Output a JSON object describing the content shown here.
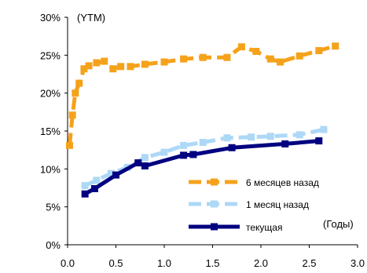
{
  "chart_data": {
    "type": "line",
    "title": "",
    "ylabel": "(YTM)",
    "xlabel": "(Годы)",
    "xlim": [
      0,
      3
    ],
    "ylim": [
      0,
      0.3
    ],
    "x_ticks": [
      0,
      0.5,
      1,
      1.5,
      2,
      2.5,
      3
    ],
    "x_tick_labels": [
      "0.0",
      "0.5",
      "1.0",
      "1.5",
      "2.0",
      "2.5",
      "3.0"
    ],
    "y_ticks": [
      0,
      0.05,
      0.1,
      0.15,
      0.2,
      0.25,
      0.3
    ],
    "y_tick_labels": [
      "0%",
      "5%",
      "10%",
      "15%",
      "20%",
      "25%",
      "30%"
    ],
    "grid": false,
    "legend_position": "lower-right",
    "series": [
      {
        "name": "6 месяцев назад",
        "color": "#F5A21B",
        "style": "dashed",
        "marker": "square",
        "x": [
          0.02,
          0.05,
          0.08,
          0.12,
          0.17,
          0.22,
          0.3,
          0.38,
          0.47,
          0.55,
          0.65,
          0.8,
          1.0,
          1.2,
          1.4,
          1.65,
          1.8,
          1.95,
          2.1,
          2.2,
          2.4,
          2.6,
          2.77
        ],
        "y": [
          0.131,
          0.171,
          0.2,
          0.213,
          0.232,
          0.236,
          0.24,
          0.242,
          0.232,
          0.235,
          0.235,
          0.238,
          0.241,
          0.245,
          0.247,
          0.247,
          0.261,
          0.255,
          0.245,
          0.241,
          0.249,
          0.256,
          0.262
        ]
      },
      {
        "name": "1 месяц назад",
        "color": "#ADD8F7",
        "style": "dashed",
        "marker": "square",
        "x": [
          0.18,
          0.3,
          0.45,
          0.62,
          0.8,
          1.0,
          1.2,
          1.4,
          1.65,
          1.9,
          2.1,
          2.4,
          2.65
        ],
        "y": [
          0.078,
          0.085,
          0.094,
          0.102,
          0.115,
          0.122,
          0.131,
          0.135,
          0.141,
          0.142,
          0.143,
          0.145,
          0.152
        ]
      },
      {
        "name": "текущая",
        "color": "#000080",
        "style": "solid",
        "marker": "square",
        "x": [
          0.18,
          0.28,
          0.5,
          0.73,
          0.8,
          1.2,
          1.3,
          1.7,
          2.25,
          2.6
        ],
        "y": [
          0.067,
          0.074,
          0.092,
          0.108,
          0.104,
          0.118,
          0.119,
          0.128,
          0.133,
          0.137
        ]
      }
    ]
  }
}
